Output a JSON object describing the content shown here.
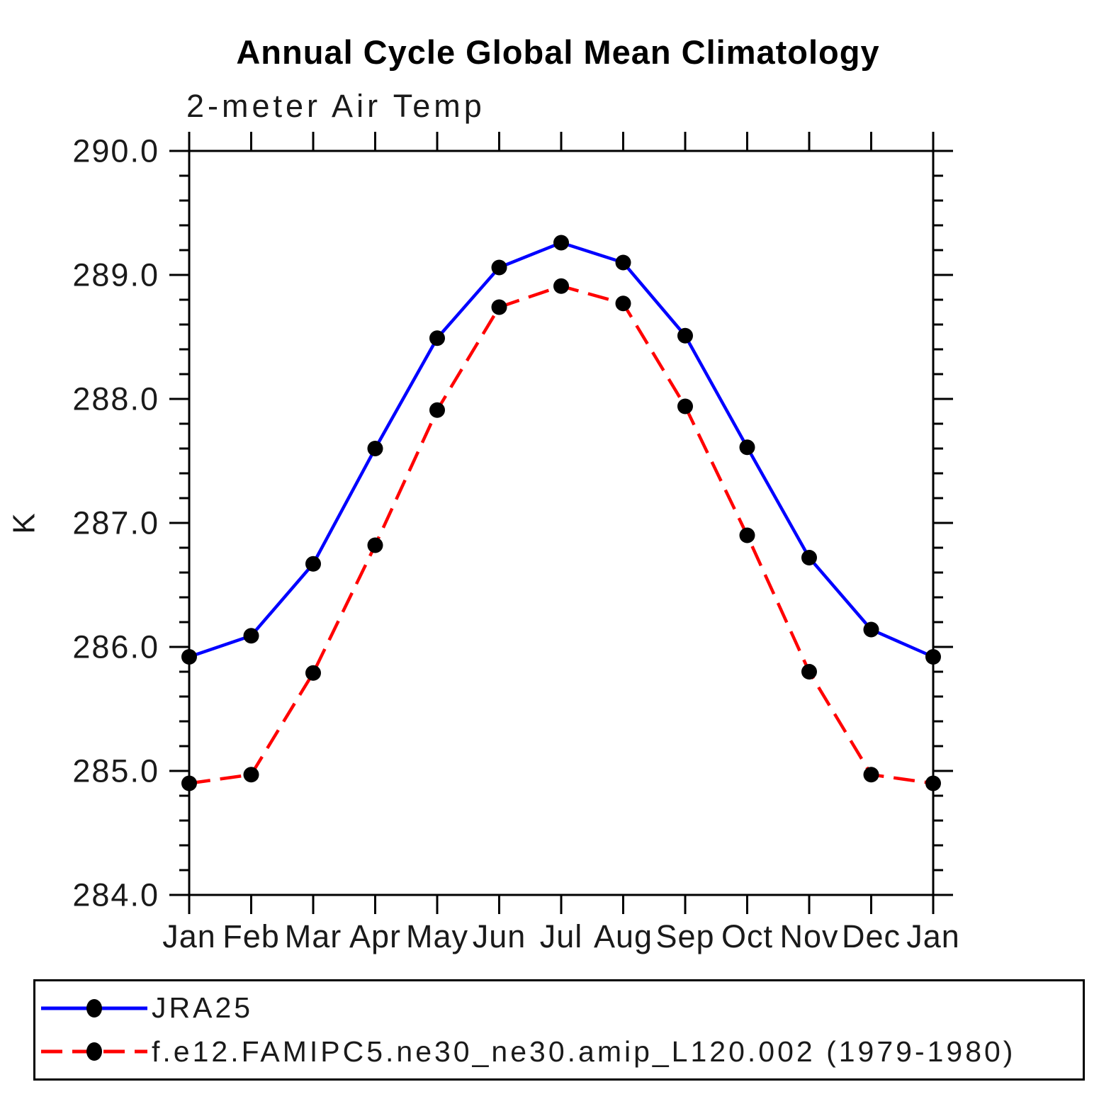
{
  "colors": {
    "background": "#ffffff",
    "axis": "#000000",
    "marker": "#000000",
    "series_blue": "#0000ff",
    "series_red": "#ff0000"
  },
  "chart_data": {
    "type": "line",
    "title": "Annual Cycle Global Mean Climatology",
    "subtitle": "2-meter Air Temp",
    "ylabel": "K",
    "xlabel": "",
    "categories": [
      "Jan",
      "Feb",
      "Mar",
      "Apr",
      "May",
      "Jun",
      "Jul",
      "Aug",
      "Sep",
      "Oct",
      "Nov",
      "Dec",
      "Jan"
    ],
    "ylim": [
      284.0,
      290.0
    ],
    "ytick_interval": 1.0,
    "yminor_interval": 0.2,
    "ytick_labels": [
      "284.0",
      "285.0",
      "286.0",
      "287.0",
      "288.0",
      "289.0",
      "290.0"
    ],
    "grid": false,
    "legend_position": "bottom",
    "series": [
      {
        "name": "JRA25",
        "color": "#0000ff",
        "style": "solid",
        "marker": "circle",
        "marker_color": "#000000",
        "values": [
          285.92,
          286.09,
          286.67,
          287.6,
          288.49,
          289.06,
          289.26,
          289.1,
          288.51,
          287.61,
          286.72,
          286.14,
          285.92
        ]
      },
      {
        "name": "f.e12.FAMIPC5.ne30_ne30.amip_L120.002 (1979-1980)",
        "color": "#ff0000",
        "style": "dashed",
        "marker": "circle",
        "marker_color": "#000000",
        "values": [
          284.9,
          284.97,
          285.79,
          286.82,
          287.91,
          288.74,
          288.91,
          288.77,
          287.94,
          286.9,
          285.8,
          284.97,
          284.9
        ]
      }
    ]
  }
}
